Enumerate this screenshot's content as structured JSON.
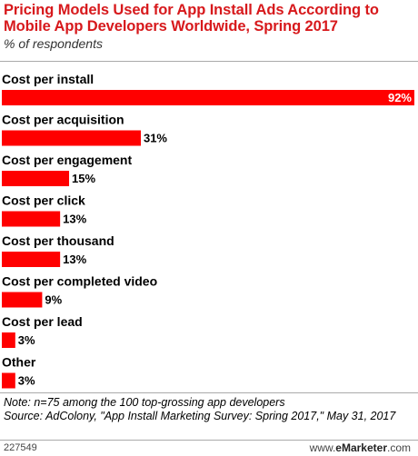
{
  "header": {
    "title": "Pricing Models Used for App Install Ads According to Mobile App Developers Worldwide, Spring 2017",
    "subtitle": "% of respondents"
  },
  "chart_data": {
    "type": "bar",
    "orientation": "horizontal",
    "categories": [
      "Cost per install",
      "Cost per acquisition",
      "Cost per engagement",
      "Cost per click",
      "Cost per thousand",
      "Cost per completed video",
      "Cost per lead",
      "Other"
    ],
    "values": [
      92,
      31,
      15,
      13,
      13,
      9,
      3,
      3
    ],
    "value_labels": [
      "92%",
      "31%",
      "15%",
      "13%",
      "13%",
      "9%",
      "3%",
      "3%"
    ],
    "unit": "%",
    "xlim": [
      0,
      92
    ],
    "bar_color": "#ff0000",
    "grid": false,
    "legend": "none"
  },
  "footer": {
    "note": "Note: n=75 among the 100 top-grossing app developers",
    "source": "Source: AdColony, \"App Install Marketing Survey: Spring 2017,\" May 31, 2017",
    "chart_id": "227549",
    "brand_prefix": "www.",
    "brand_name": "eMarketer",
    "brand_suffix": ".com"
  }
}
